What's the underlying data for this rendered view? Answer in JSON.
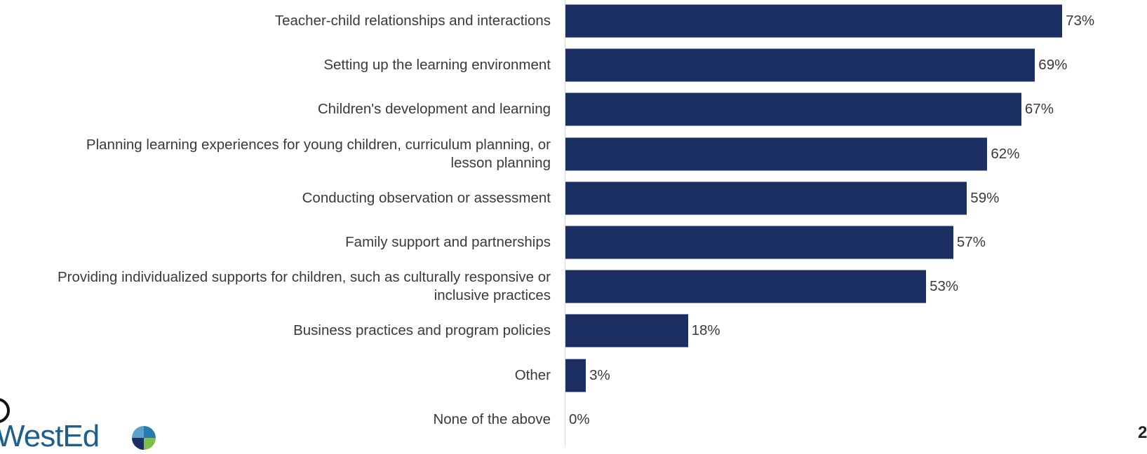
{
  "chart_data": {
    "type": "bar",
    "orientation": "horizontal",
    "categories": [
      "Teacher-child relationships and interactions",
      "Setting up the learning environment",
      "Children's development and learning",
      "Planning learning experiences for young children, curriculum planning, or\nlesson planning",
      "Conducting observation or assessment",
      "Family support and partnerships",
      "Providing individualized supports for children, such as culturally responsive or\ninclusive practices",
      "Business practices and program policies",
      "Other",
      "None of the above"
    ],
    "values": [
      73,
      69,
      67,
      62,
      59,
      57,
      53,
      18,
      3,
      0
    ],
    "value_labels": [
      "73%",
      "69%",
      "67%",
      "62%",
      "59%",
      "57%",
      "53%",
      "18%",
      "3%",
      "0%"
    ],
    "color": "#1b2f63"
  },
  "logo": "WestEd",
  "page_number": "2"
}
